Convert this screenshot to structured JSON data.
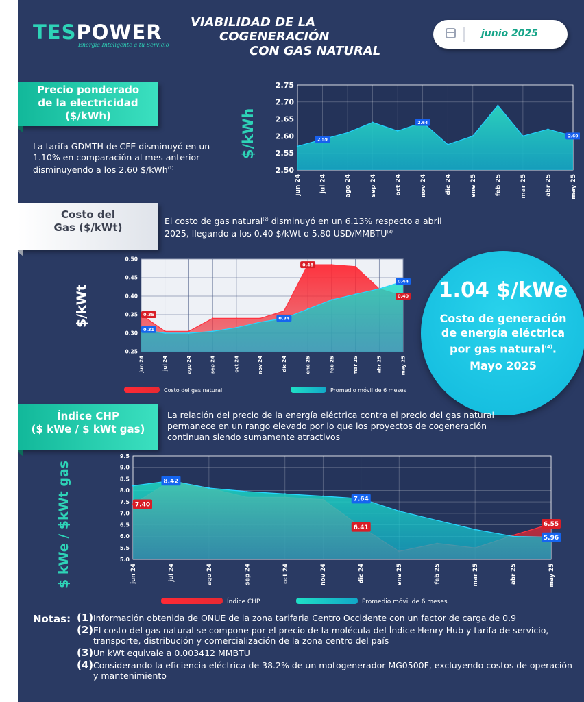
{
  "brand": {
    "name_part1": "TES",
    "name_part2": "POWER",
    "tagline": "Energía Inteligente a tu Servicio"
  },
  "title": {
    "line1": "VIABILIDAD DE LA",
    "line2": "COGENERACIÓN",
    "line3": "CON GAS NATURAL"
  },
  "date": "junio 2025",
  "section1": {
    "tab_line1": "Precio ponderado",
    "tab_line2": "de la electricidad",
    "tab_line3": "($/kWh)",
    "text": "La tarifa GDMTH de CFE disminuyó en un 1.10% en comparación al mes anterior disminuyendo a los 2.60 $/kWh",
    "text_note": "(1)"
  },
  "section2": {
    "tab_line1": "Costo del",
    "tab_line2": "Gas ($/kWt)",
    "text_a": "El costo de gas natural",
    "text_a_note": "(2)",
    "text_b": " disminuyó en un 6.13% respecto a abril",
    "text_c": "2025, llegando a los 0.40 $/kWt o 5.80 USD/MMBTU",
    "text_c_note": "(3)"
  },
  "section3": {
    "tab_line1": "Índice CHP",
    "tab_line2": "($ kWe / $ kWt gas)",
    "text": "La relación del precio de la energía eléctrica contra el precio del gas natural permanece en un rango elevado por lo que los proyectos de cogeneración continuan siendo sumamente atractivos"
  },
  "highlight": {
    "value": "1.04 $/kWe",
    "caption_line1": "Costo de generación",
    "caption_line2": "de energía eléctrica",
    "caption_line3": "por gas natural",
    "caption_note": "(4)",
    "caption_suffix": ".",
    "period": "Mayo 2025"
  },
  "notes": {
    "heading": "Notas:",
    "items": [
      {
        "num": "(1)",
        "text": "Información obtenida de ONUE de la zona tarifaria Centro Occidente con un factor de carga de 0.9"
      },
      {
        "num": "(2)",
        "text": "El costo del gas natural se compone por el precio de la molécula del Índice Henry Hub y tarifa de servicio, transporte, distribución y comercialización de la zona centro del país"
      },
      {
        "num": "(3)",
        "text": "Un kWt equivale a 0.003412 MMBTU"
      },
      {
        "num": "(4)",
        "text": "Considerando la eficiencia eléctrica de 38.2% de un motogenerador MG0500F, excluyendo costos de operación y mantenimiento"
      }
    ]
  },
  "colors": {
    "background": "#2a3a63",
    "teal": "#2ed3b7",
    "red": "#e0262f",
    "cyan": "#1fb8e8"
  },
  "chart_data": [
    {
      "type": "area",
      "ylabel": "$/kWh",
      "ylim": [
        2.5,
        2.75
      ],
      "yticks": [
        "2.75",
        "2.70",
        "2.65",
        "2.60",
        "2.55",
        "2.50"
      ],
      "categories": [
        "jun 24",
        "jul 24",
        "ago 24",
        "sep 24",
        "oct 24",
        "nov 24",
        "dic 24",
        "ene 25",
        "feb 25",
        "mar 25",
        "abr 25",
        "may 25"
      ],
      "series": [
        {
          "values": [
            2.57,
            2.59,
            2.61,
            2.64,
            2.615,
            2.64,
            2.575,
            2.6,
            2.69,
            2.6,
            2.62,
            2.6
          ]
        }
      ],
      "data_labels": [
        {
          "index": 1,
          "text": "2.59"
        },
        {
          "index": 5,
          "text": "2.64"
        },
        {
          "index": 11,
          "text": "2.60"
        }
      ],
      "grid": true
    },
    {
      "type": "area",
      "ylabel": "$/kWt",
      "ylim": [
        0.25,
        0.5
      ],
      "yticks": [
        "0.50",
        "0.45",
        "0.40",
        "0.35",
        "0.30",
        "0.25"
      ],
      "categories": [
        "jun 24",
        "jul 24",
        "ago 24",
        "sep 24",
        "oct 24",
        "nov 24",
        "dic 24",
        "ene 25",
        "feb 25",
        "mar 25",
        "abr 25",
        "may 25"
      ],
      "series": [
        {
          "name": "Costo del gas natural",
          "values": [
            0.35,
            0.305,
            0.305,
            0.34,
            0.34,
            0.34,
            0.36,
            0.485,
            0.485,
            0.48,
            0.42,
            0.4
          ]
        },
        {
          "name": "Promedio móvil de 6 meses",
          "values": [
            0.31,
            0.3,
            0.3,
            0.305,
            0.315,
            0.33,
            0.34,
            0.365,
            0.39,
            0.405,
            0.42,
            0.44
          ]
        }
      ],
      "data_labels": [
        {
          "series": 0,
          "index": 0,
          "text": "0.35"
        },
        {
          "series": 1,
          "index": 0,
          "text": "0.31"
        },
        {
          "series": 1,
          "index": 6,
          "text": "0.34"
        },
        {
          "series": 0,
          "index": 7,
          "text": "0.48"
        },
        {
          "series": 1,
          "index": 11,
          "text": "0.44"
        },
        {
          "series": 0,
          "index": 11,
          "text": "0.40"
        }
      ],
      "legend": "bottom",
      "grid": true
    },
    {
      "type": "area",
      "ylabel": "$ kWe / $kWt gas",
      "ylim": [
        5.0,
        9.5
      ],
      "yticks": [
        "9.5",
        "9.0",
        "8.5",
        "8.0",
        "7.5",
        "7.0",
        "6.5",
        "6.0",
        "5.5",
        "5.0"
      ],
      "categories": [
        "jun 24",
        "jul 24",
        "ago 24",
        "sep 24",
        "oct 24",
        "nov 24",
        "dic 24",
        "ene 25",
        "feb 25",
        "mar 25",
        "abr 25",
        "may 25"
      ],
      "series": [
        {
          "name": "Índice CHP",
          "values": [
            7.4,
            8.42,
            8.1,
            7.7,
            7.7,
            7.6,
            6.41,
            5.35,
            5.7,
            5.5,
            6.05,
            6.55
          ]
        },
        {
          "name": "Promedio móvil de 6 meses",
          "values": [
            8.2,
            8.42,
            8.1,
            7.95,
            7.85,
            7.75,
            7.64,
            7.1,
            6.7,
            6.3,
            6.0,
            5.96
          ]
        }
      ],
      "data_labels": [
        {
          "series": 0,
          "index": 0,
          "text": "7.40"
        },
        {
          "series": 1,
          "index": 1,
          "text": "8.42"
        },
        {
          "series": 1,
          "index": 6,
          "text": "7.64"
        },
        {
          "series": 0,
          "index": 6,
          "text": "6.41"
        },
        {
          "series": 0,
          "index": 11,
          "text": "6.55"
        },
        {
          "series": 1,
          "index": 11,
          "text": "5.96"
        }
      ],
      "legend": "bottom",
      "grid": true
    }
  ]
}
